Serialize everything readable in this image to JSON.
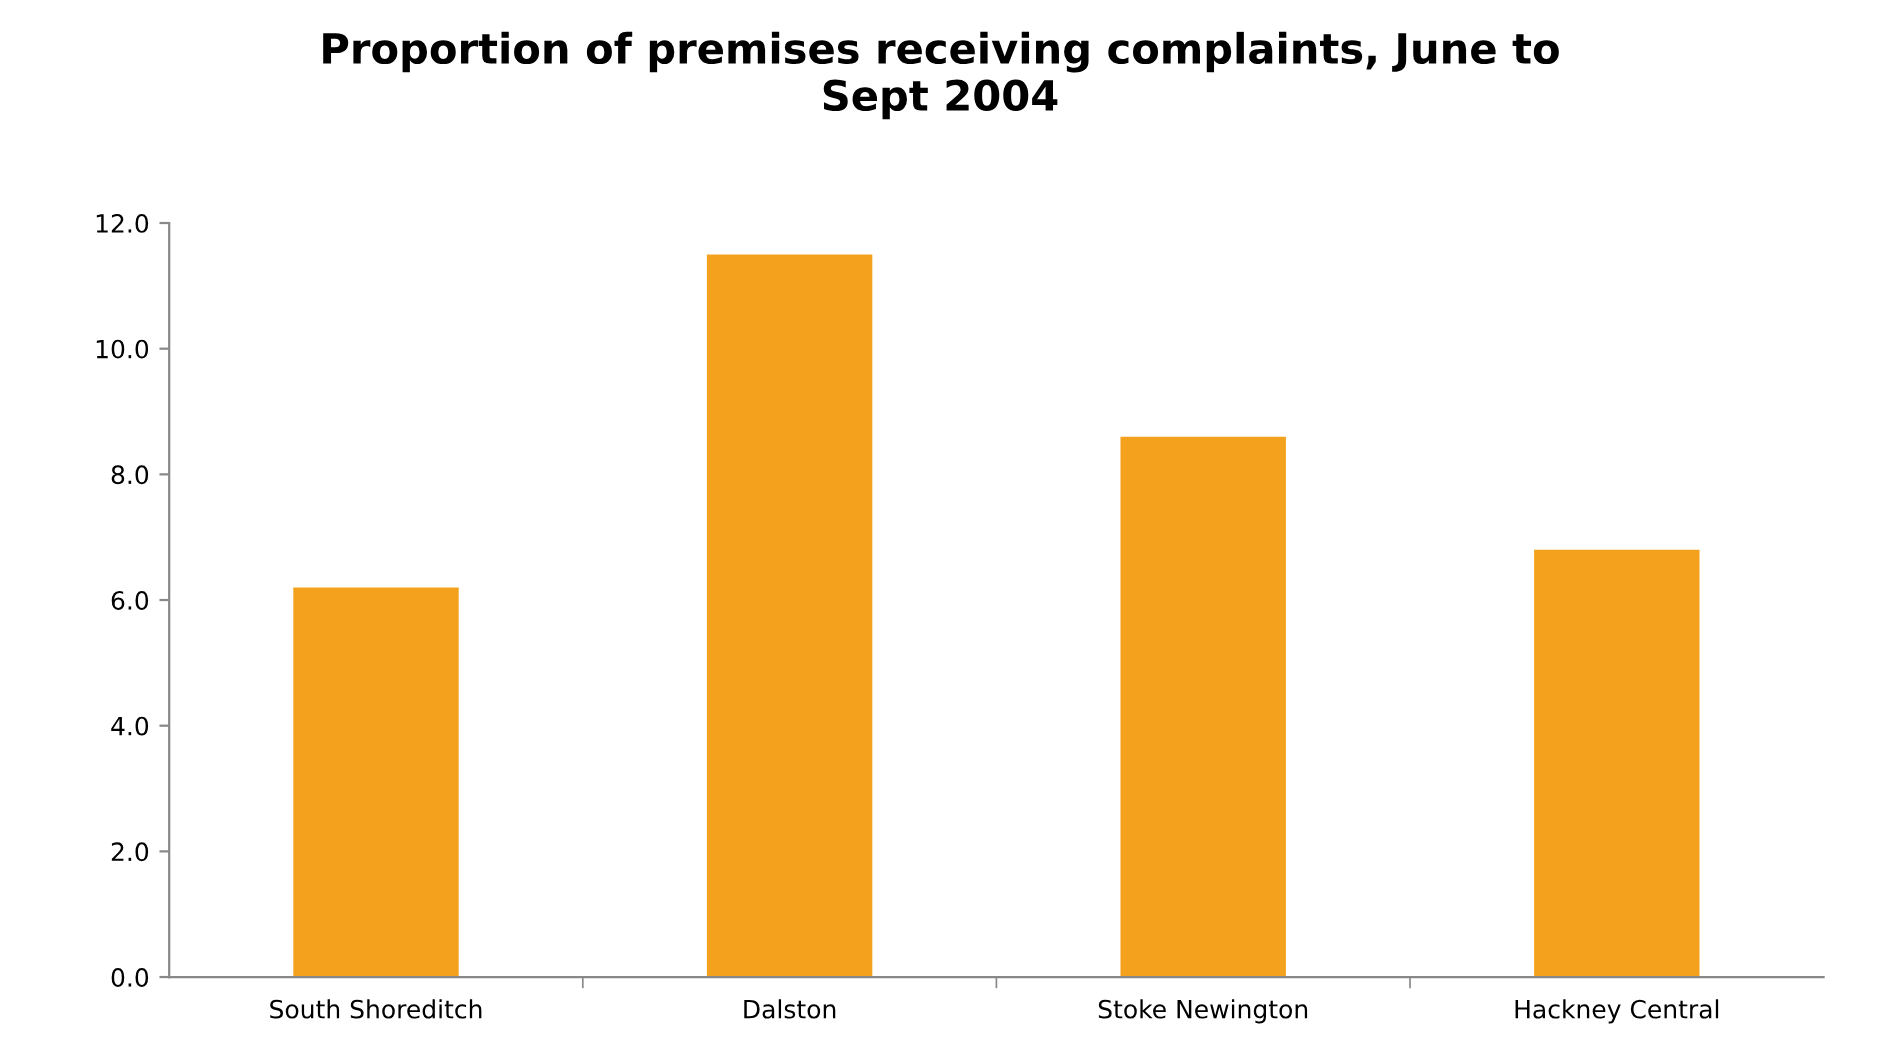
{
  "chart_data": {
    "type": "bar",
    "title": "Proportion of premises receiving complaints, June to\nSept 2004",
    "categories": [
      "South Shoreditch",
      "Dalston",
      "Stoke Newington",
      "Hackney Central"
    ],
    "values": [
      6.2,
      11.5,
      8.6,
      6.8
    ],
    "color": "#f4a21e",
    "ylim": [
      0,
      12
    ],
    "yticks": [
      {
        "value": 0,
        "label": "0.0"
      },
      {
        "value": 2,
        "label": "2.0"
      },
      {
        "value": 4,
        "label": "4.0"
      },
      {
        "value": 6,
        "label": "6.0"
      },
      {
        "value": 8,
        "label": "8.0"
      },
      {
        "value": 10,
        "label": "10.0"
      },
      {
        "value": 12,
        "label": "12.0"
      }
    ],
    "grid": false
  }
}
